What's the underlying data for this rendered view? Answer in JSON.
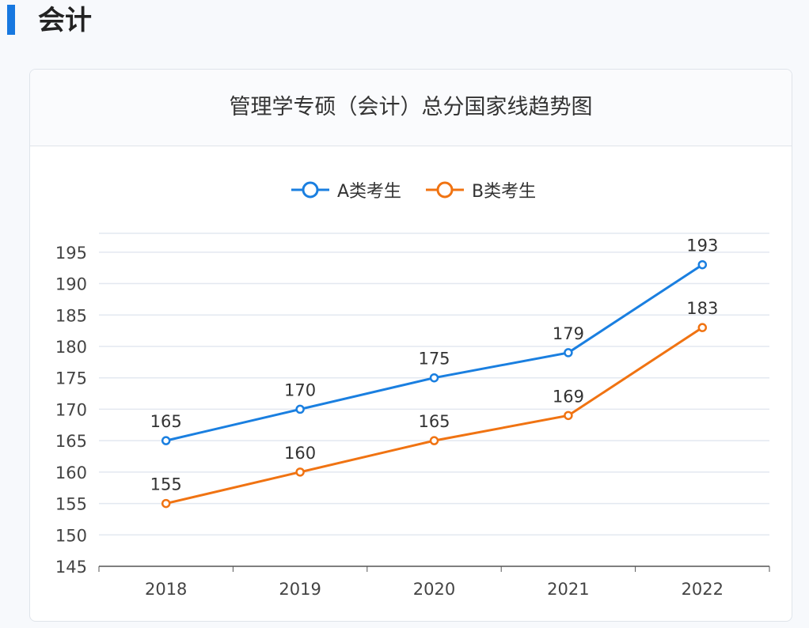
{
  "section_title": "会计",
  "chart_data": {
    "type": "line",
    "title": "管理学专硕（会计）总分国家线趋势图",
    "categories": [
      "2018",
      "2019",
      "2020",
      "2021",
      "2022"
    ],
    "series": [
      {
        "name": "A类考生",
        "values": [
          165,
          170,
          175,
          179,
          193
        ],
        "color": "#1a7fe0"
      },
      {
        "name": "B类考生",
        "values": [
          155,
          160,
          165,
          169,
          183
        ],
        "color": "#f07312"
      }
    ],
    "yticks": [
      145,
      150,
      155,
      160,
      165,
      170,
      175,
      180,
      185,
      190,
      195
    ],
    "ylim": [
      145,
      198
    ],
    "grid": true,
    "legend": "top-center",
    "xlabel": "",
    "ylabel": ""
  }
}
